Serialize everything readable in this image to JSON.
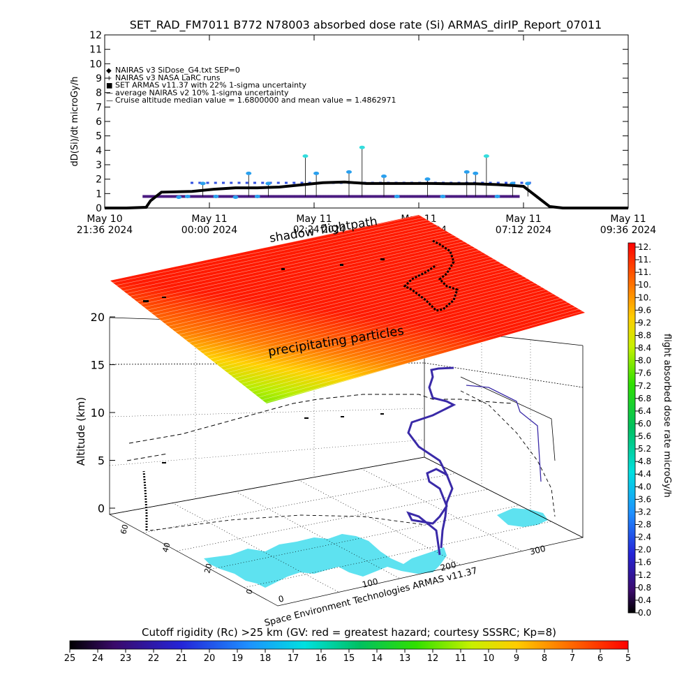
{
  "title": "SET_RAD_FM7011  B772 N78003 absorbed dose rate (Si) ARMAS_dirIP_Report_07011",
  "chart_data": [
    {
      "type": "line",
      "ylabel": "dD(Si)/dt microGy/h",
      "ylim": [
        0,
        12
      ],
      "y_ticks": [
        "0",
        "1",
        "2",
        "3",
        "4",
        "5",
        "6",
        "7",
        "8",
        "9",
        "10",
        "11",
        "12"
      ],
      "x_ticks": [
        {
          "l1": "May 10",
          "l2": "21:36 2024"
        },
        {
          "l1": "May 11",
          "l2": "00:00 2024"
        },
        {
          "l1": "May 11",
          "l2": "02:24 2024"
        },
        {
          "l1": "May 11",
          "l2": "04:48 2024"
        },
        {
          "l1": "May 11",
          "l2": "07:12 2024"
        },
        {
          "l1": "May 11",
          "l2": "09:36 2024"
        }
      ],
      "legend": [
        "NAIRAS v3 SiDose_G4.txt SEP=0",
        "NAIRAS v3 NASA LaRC runs",
        "SET ARMAS v11.37 with 22% 1-sigma uncertainty",
        "average NAIRAS v2 10% 1-sigma uncertainty",
        "Cruise altitude median value = 1.6800000 and mean value = 1.4862971"
      ],
      "series": [
        {
          "name": "NAIRAS v3 SiDose_G4.txt SEP=0",
          "x_hours": [
            0,
            0.5,
            0.95,
            1.05,
            1.3,
            2.0,
            2.5,
            3.0,
            3.5,
            4.0,
            4.5,
            5.0,
            5.5,
            6.0,
            6.5,
            7.0,
            7.5,
            8.0,
            8.5,
            9.0,
            9.4,
            9.6,
            9.9,
            10.2,
            10.5,
            11.0,
            12.0
          ],
          "values": [
            0,
            0,
            0.05,
            0.5,
            1.1,
            1.15,
            1.3,
            1.4,
            1.4,
            1.45,
            1.6,
            1.75,
            1.8,
            1.7,
            1.7,
            1.7,
            1.7,
            1.68,
            1.68,
            1.62,
            1.55,
            1.5,
            0.8,
            0.1,
            0,
            0,
            0
          ]
        },
        {
          "name": "SET ARMAS v11.37 with 22% 1-sigma uncertainty",
          "x_hours": [
            1.7,
            1.9,
            2.25,
            2.55,
            3.0,
            3.3,
            3.5,
            3.75,
            4.6,
            4.85,
            5.6,
            5.9,
            6.4,
            6.7,
            7.4,
            7.75,
            8.3,
            8.5,
            8.75,
            9.0,
            9.35,
            9.7
          ],
          "values": [
            0.75,
            0.8,
            1.7,
            0.8,
            0.75,
            2.4,
            0.8,
            1.7,
            3.6,
            2.4,
            2.5,
            4.2,
            2.2,
            0.8,
            2.0,
            0.8,
            2.5,
            2.4,
            3.6,
            0.8,
            1.7,
            1.7
          ]
        }
      ]
    },
    {
      "type": "surface-3d",
      "ylabel": "Altitude (km)",
      "z_ticks": [
        "0",
        "5",
        "10",
        "15",
        "20"
      ],
      "lat_ticks": [
        "60",
        "40",
        "20",
        "0"
      ],
      "lon_ticks": [
        "0",
        "100",
        "200",
        "300"
      ],
      "annotations": {
        "shadow_label": "shadow",
        "flightpath_label": "flightpath",
        "particles_label": "precipitating particles",
        "credit": "Space Environment Technologies ARMAS v11.37",
        "overlap_date": "02:24 2024"
      },
      "colorbar": {
        "label": "flight absorbed dose rate microGy/h",
        "ticks": [
          "12.",
          "11.",
          "11.",
          "10.",
          "10.",
          "9.6",
          "9.2",
          "8.8",
          "8.4",
          "8.0",
          "7.6",
          "7.2",
          "6.8",
          "6.4",
          "6.0",
          "5.6",
          "5.2",
          "4.8",
          "4.4",
          "4.0",
          "3.6",
          "3.2",
          "2.8",
          "2.4",
          "2.0",
          "1.6",
          "1.2",
          "0.8",
          "0.4",
          "0.0"
        ]
      },
      "rigidity_bar": {
        "label": "Cutoff rigidity (Rc) >25 km (GV: red = greatest hazard; courtesy SSSRC; Kp=8)",
        "ticks": [
          "25",
          "24",
          "23",
          "22",
          "21",
          "20",
          "19",
          "18",
          "17",
          "16",
          "15",
          "14",
          "13",
          "12",
          "11",
          "10",
          "9",
          "8",
          "7",
          "6",
          "5"
        ]
      }
    }
  ],
  "colors": {
    "nairas": "#000000",
    "armas_high": "#2aa0ee",
    "armas_low": "#4a1a80",
    "armas_mid": "#33dddd",
    "particles_high": "#ff2200",
    "particles_low": "#55dd00",
    "land": "#5ee2f0",
    "path": "#3a2aa8"
  }
}
